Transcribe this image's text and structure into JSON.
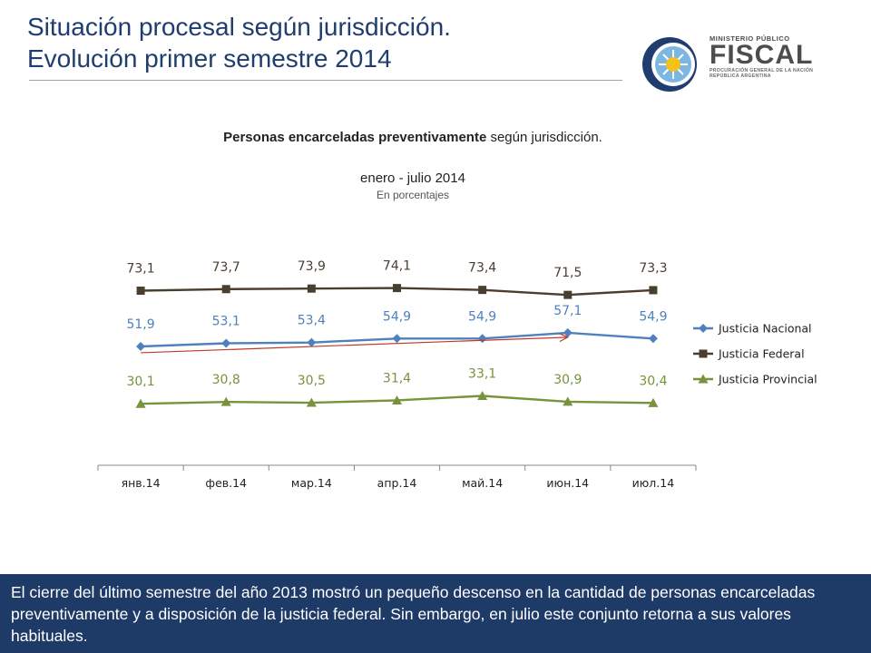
{
  "page": {
    "title_line1": "Situación procesal según jurisdicción.",
    "title_line2": "Evolución primer semestre 2014",
    "footer_text": "El cierre del último semestre del año 2013 mostró un pequeño descenso en la cantidad de personas encarceladas preventivamente y a disposición de la justicia federal. Sin embargo, en julio este conjunto retorna a sus valores habituales."
  },
  "logo": {
    "line1": "MINISTERIO PÚBLICO",
    "line2": "FISCAL",
    "line3": "PROCURACIÓN GENERAL DE LA NACIÓN",
    "line4": "REPÚBLICA ARGENTINA"
  },
  "chart_data": {
    "type": "line",
    "title_bold": "Personas encarceladas preventivamente",
    "title_rest": " según jurisdicción.",
    "subtitle": "enero - julio 2014",
    "units": "En porcentajes",
    "categories": [
      "янв.14",
      "фев.14",
      "мар.14",
      "апр.14",
      "май.14",
      "июн.14",
      "июл.14"
    ],
    "series": [
      {
        "name": "Justicia Nacional",
        "values": [
          51.9,
          53.1,
          53.4,
          54.9,
          54.9,
          57.1,
          54.9
        ],
        "labels": [
          "51,9",
          "53,1",
          "53,4",
          "54,9",
          "54,9",
          "57,1",
          "54,9"
        ],
        "color": "#4f81bd",
        "marker": "diamond"
      },
      {
        "name": "Justicia Federal",
        "values": [
          73.1,
          73.7,
          73.9,
          74.1,
          73.4,
          71.5,
          73.3
        ],
        "labels": [
          "73,1",
          "73,7",
          "73,9",
          "74,1",
          "73,4",
          "71,5",
          "73,3"
        ],
        "color": "#4a3f2f",
        "marker": "square"
      },
      {
        "name": "Justicia Provincial",
        "values": [
          30.1,
          30.8,
          30.5,
          31.4,
          33.1,
          30.9,
          30.4
        ],
        "labels": [
          "30,1",
          "30,8",
          "30,5",
          "31,4",
          "33,1",
          "30,9",
          "30,4"
        ],
        "color": "#77933c",
        "marker": "triangle"
      }
    ],
    "annotations": [
      {
        "type": "trend-arrow",
        "color": "#c0392b",
        "from": {
          "x": "янв.14",
          "y": 49.5
        },
        "to": {
          "x": "июн.14",
          "y": 55.4
        }
      }
    ],
    "y_axis_visible": false,
    "grid": false,
    "legend": "right"
  }
}
